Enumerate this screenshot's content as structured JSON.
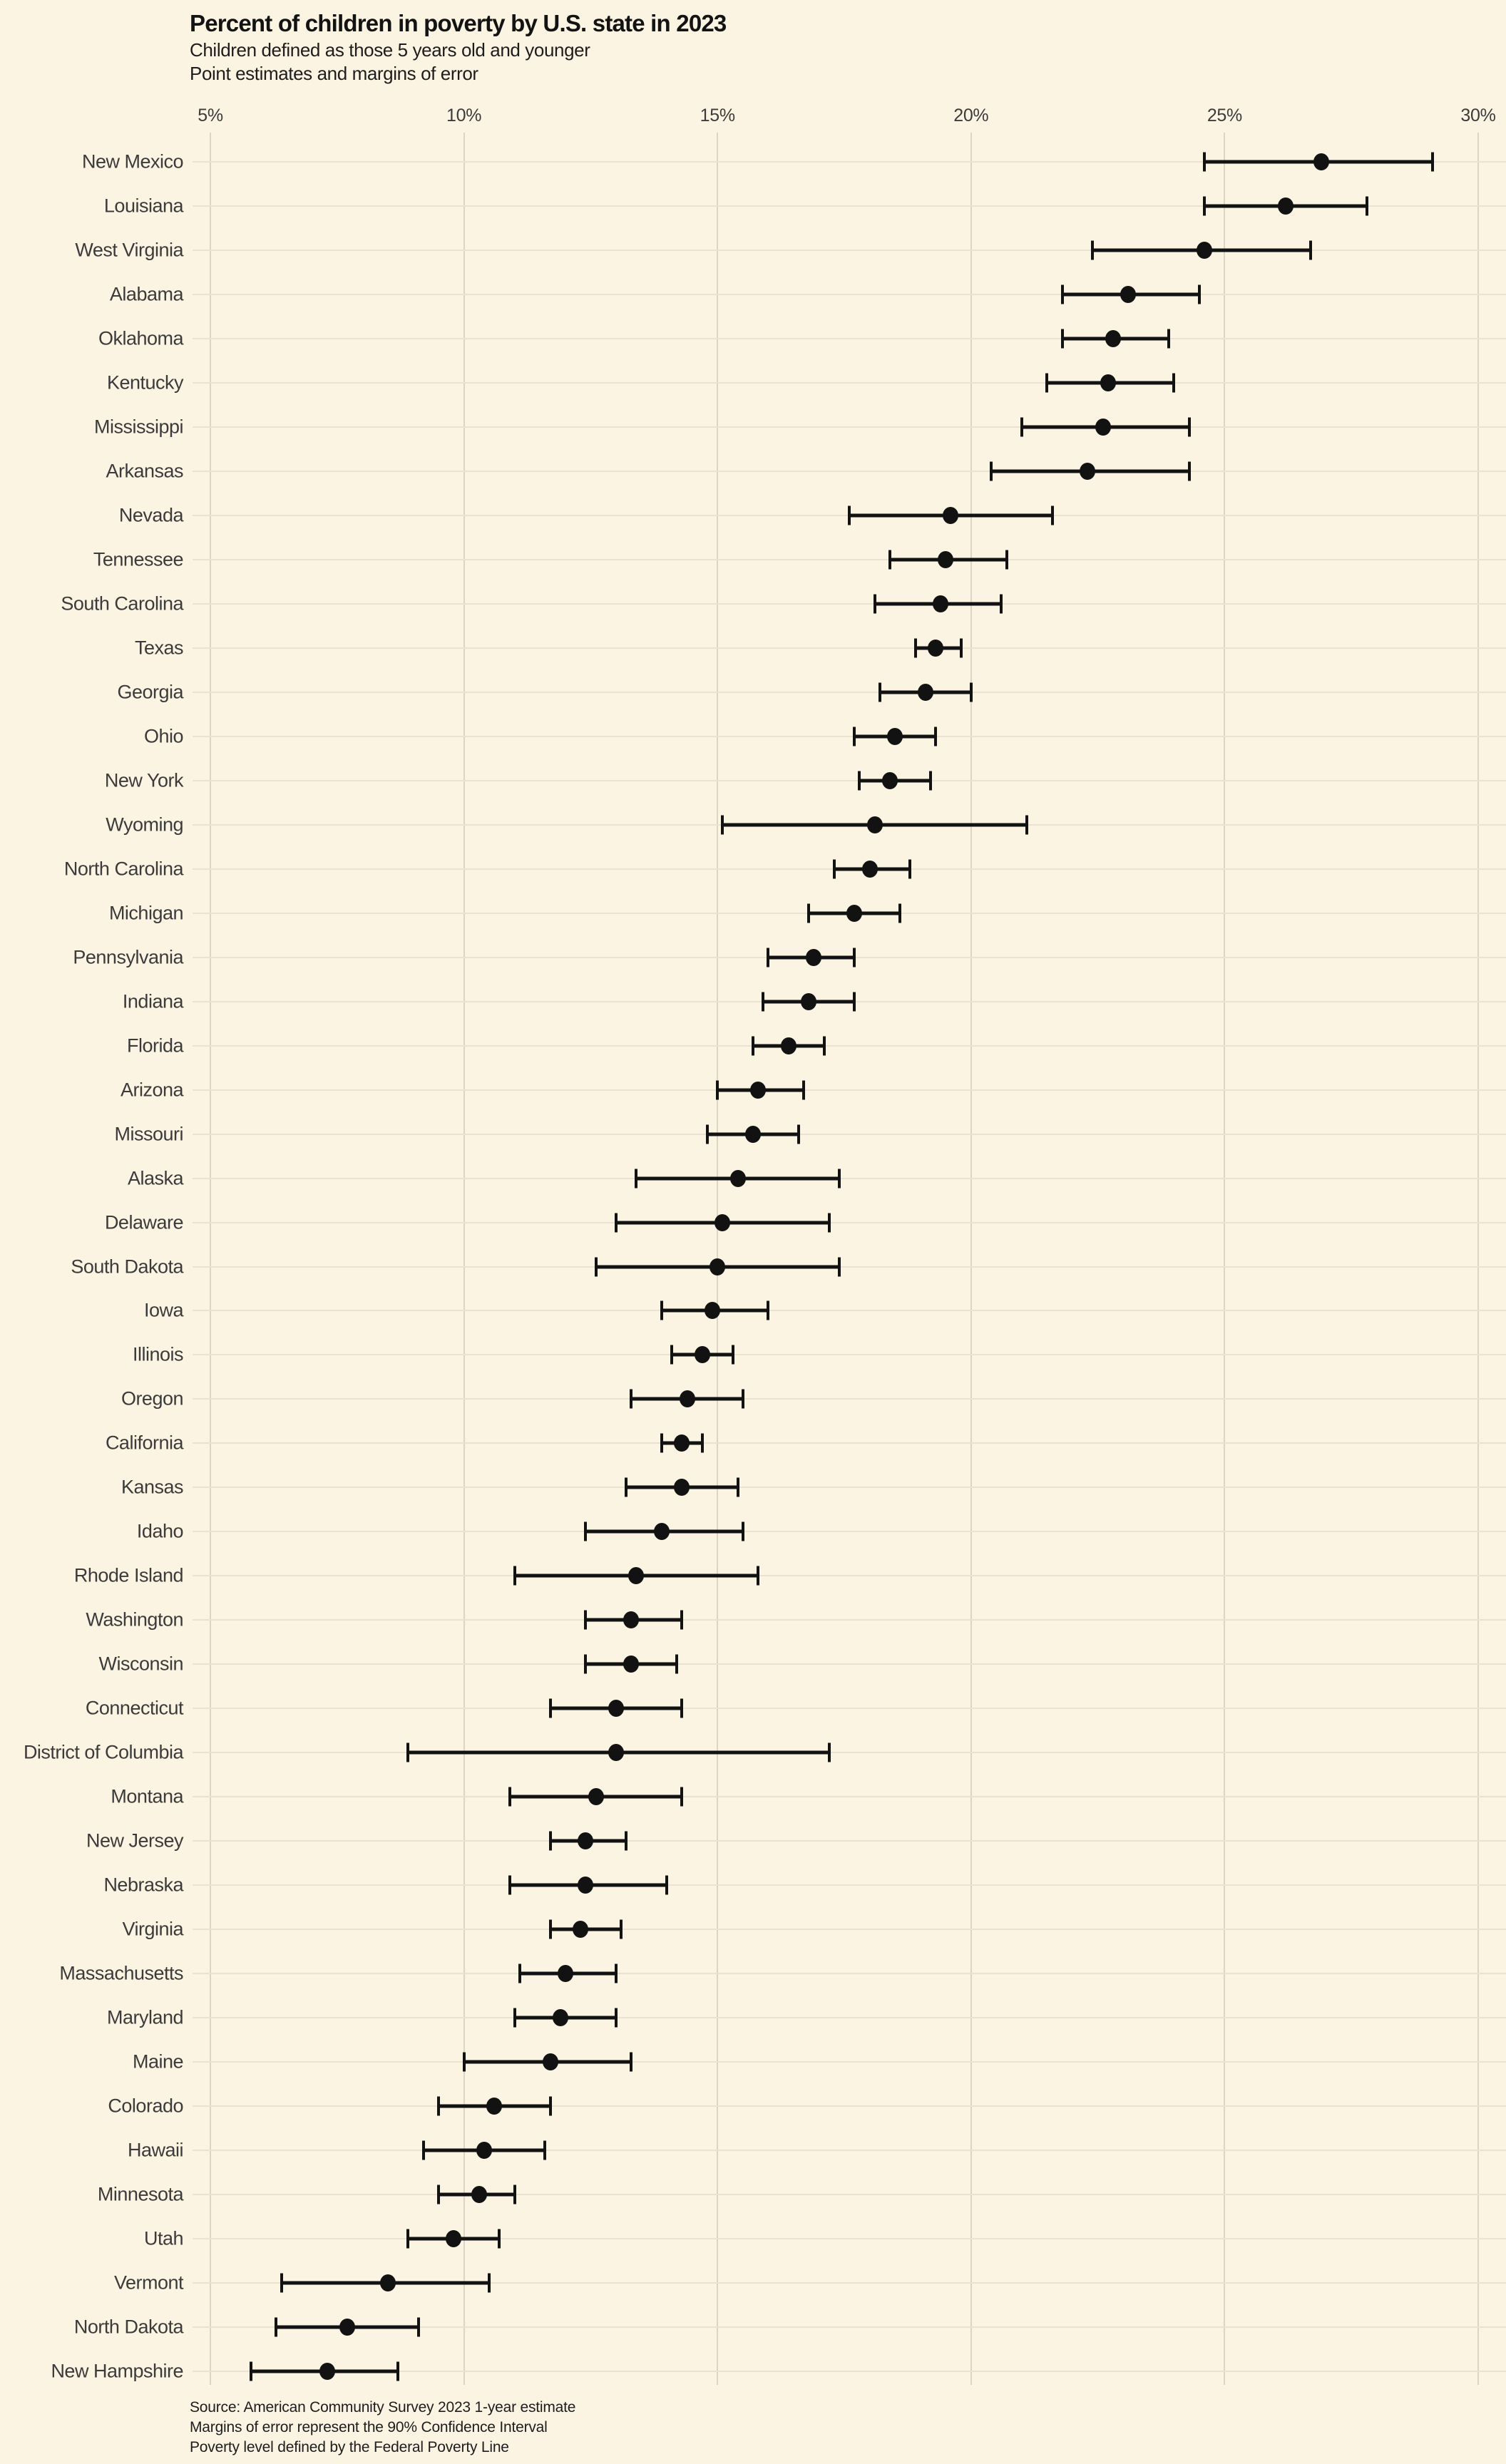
{
  "header": {
    "title": "Percent of children in poverty by U.S. state in 2023",
    "subtitle1": "Children defined as those 5 years old and younger",
    "subtitle2": "Point estimates and margins of error"
  },
  "footer": {
    "lines": [
      "Source: American Community Survey 2023 1-year estimate",
      "Margins of error represent the 90% Confidence Interval",
      "Poverty level defined by the Federal Poverty Line"
    ]
  },
  "colors": {
    "background": "#FBF4E2",
    "vertical_gridline": "#DCD5C4",
    "row_gridline": "#EAE3D2",
    "marker": "#121212",
    "title_text": "#131313",
    "label_text": "#3B3B3B"
  },
  "chart_data": {
    "type": "scatter",
    "subtype": "dot-plot-with-error-bars",
    "title": "Percent of children in poverty by U.S. state in 2023",
    "subtitle": [
      "Children defined as those 5 years old and younger",
      "Point estimates and margins of error"
    ],
    "xlabel": "",
    "ylabel": "",
    "unit": "%",
    "xlim": [
      5,
      30
    ],
    "x_ticks": [
      {
        "value": 5,
        "label": "5%"
      },
      {
        "value": 10,
        "label": "10%"
      },
      {
        "value": 15,
        "label": "15%"
      },
      {
        "value": 20,
        "label": "20%"
      },
      {
        "value": 25,
        "label": "25%"
      },
      {
        "value": 30,
        "label": "30%"
      }
    ],
    "grid": "vertical-at-ticks-and-faint-row-lines",
    "legend": "none",
    "error_bar_meaning": "90% Confidence Interval",
    "series": [
      {
        "state": "New Mexico",
        "value": 26.9,
        "low": 24.6,
        "high": 29.1
      },
      {
        "state": "Louisiana",
        "value": 26.2,
        "low": 24.6,
        "high": 27.8
      },
      {
        "state": "West Virginia",
        "value": 24.6,
        "low": 22.4,
        "high": 26.7
      },
      {
        "state": "Alabama",
        "value": 23.1,
        "low": 21.8,
        "high": 24.5
      },
      {
        "state": "Oklahoma",
        "value": 22.8,
        "low": 21.8,
        "high": 23.9
      },
      {
        "state": "Kentucky",
        "value": 22.7,
        "low": 21.5,
        "high": 24.0
      },
      {
        "state": "Mississippi",
        "value": 22.6,
        "low": 21.0,
        "high": 24.3
      },
      {
        "state": "Arkansas",
        "value": 22.3,
        "low": 20.4,
        "high": 24.3
      },
      {
        "state": "Nevada",
        "value": 19.6,
        "low": 17.6,
        "high": 21.6
      },
      {
        "state": "Tennessee",
        "value": 19.5,
        "low": 18.4,
        "high": 20.7
      },
      {
        "state": "South Carolina",
        "value": 19.4,
        "low": 18.1,
        "high": 20.6
      },
      {
        "state": "Texas",
        "value": 19.3,
        "low": 18.9,
        "high": 19.8
      },
      {
        "state": "Georgia",
        "value": 19.1,
        "low": 18.2,
        "high": 20.0
      },
      {
        "state": "Ohio",
        "value": 18.5,
        "low": 17.7,
        "high": 19.3
      },
      {
        "state": "New York",
        "value": 18.4,
        "low": 17.8,
        "high": 19.2
      },
      {
        "state": "Wyoming",
        "value": 18.1,
        "low": 15.1,
        "high": 21.1
      },
      {
        "state": "North Carolina",
        "value": 18.0,
        "low": 17.3,
        "high": 18.8
      },
      {
        "state": "Michigan",
        "value": 17.7,
        "low": 16.8,
        "high": 18.6
      },
      {
        "state": "Pennsylvania",
        "value": 16.9,
        "low": 16.0,
        "high": 17.7
      },
      {
        "state": "Indiana",
        "value": 16.8,
        "low": 15.9,
        "high": 17.7
      },
      {
        "state": "Florida",
        "value": 16.4,
        "low": 15.7,
        "high": 17.1
      },
      {
        "state": "Arizona",
        "value": 15.8,
        "low": 15.0,
        "high": 16.7
      },
      {
        "state": "Missouri",
        "value": 15.7,
        "low": 14.8,
        "high": 16.6
      },
      {
        "state": "Alaska",
        "value": 15.4,
        "low": 13.4,
        "high": 17.4
      },
      {
        "state": "Delaware",
        "value": 15.1,
        "low": 13.0,
        "high": 17.2
      },
      {
        "state": "South Dakota",
        "value": 15.0,
        "low": 12.6,
        "high": 17.4
      },
      {
        "state": "Iowa",
        "value": 14.9,
        "low": 13.9,
        "high": 16.0
      },
      {
        "state": "Illinois",
        "value": 14.7,
        "low": 14.1,
        "high": 15.3
      },
      {
        "state": "Oregon",
        "value": 14.4,
        "low": 13.3,
        "high": 15.5
      },
      {
        "state": "California",
        "value": 14.3,
        "low": 13.9,
        "high": 14.7
      },
      {
        "state": "Kansas",
        "value": 14.3,
        "low": 13.2,
        "high": 15.4
      },
      {
        "state": "Idaho",
        "value": 13.9,
        "low": 12.4,
        "high": 15.5
      },
      {
        "state": "Rhode Island",
        "value": 13.4,
        "low": 11.0,
        "high": 15.8
      },
      {
        "state": "Washington",
        "value": 13.3,
        "low": 12.4,
        "high": 14.3
      },
      {
        "state": "Wisconsin",
        "value": 13.3,
        "low": 12.4,
        "high": 14.2
      },
      {
        "state": "Connecticut",
        "value": 13.0,
        "low": 11.7,
        "high": 14.3
      },
      {
        "state": "District of Columbia",
        "value": 13.0,
        "low": 8.9,
        "high": 17.2
      },
      {
        "state": "Montana",
        "value": 12.6,
        "low": 10.9,
        "high": 14.3
      },
      {
        "state": "New Jersey",
        "value": 12.4,
        "low": 11.7,
        "high": 13.2
      },
      {
        "state": "Nebraska",
        "value": 12.4,
        "low": 10.9,
        "high": 14.0
      },
      {
        "state": "Virginia",
        "value": 12.3,
        "low": 11.7,
        "high": 13.1
      },
      {
        "state": "Massachusetts",
        "value": 12.0,
        "low": 11.1,
        "high": 13.0
      },
      {
        "state": "Maryland",
        "value": 11.9,
        "low": 11.0,
        "high": 13.0
      },
      {
        "state": "Maine",
        "value": 11.7,
        "low": 10.0,
        "high": 13.3
      },
      {
        "state": "Colorado",
        "value": 10.6,
        "low": 9.5,
        "high": 11.7
      },
      {
        "state": "Hawaii",
        "value": 10.4,
        "low": 9.2,
        "high": 11.6
      },
      {
        "state": "Minnesota",
        "value": 10.3,
        "low": 9.5,
        "high": 11.0
      },
      {
        "state": "Utah",
        "value": 9.8,
        "low": 8.9,
        "high": 10.7
      },
      {
        "state": "Vermont",
        "value": 8.5,
        "low": 6.4,
        "high": 10.5
      },
      {
        "state": "North Dakota",
        "value": 7.7,
        "low": 6.3,
        "high": 9.1
      },
      {
        "state": "New Hampshire",
        "value": 7.3,
        "low": 5.8,
        "high": 8.7
      }
    ],
    "notes": [
      "Source: American Community Survey 2023 1-year estimate",
      "Margins of error represent the 90% Confidence Interval",
      "Poverty level defined by the Federal Poverty Line"
    ]
  }
}
